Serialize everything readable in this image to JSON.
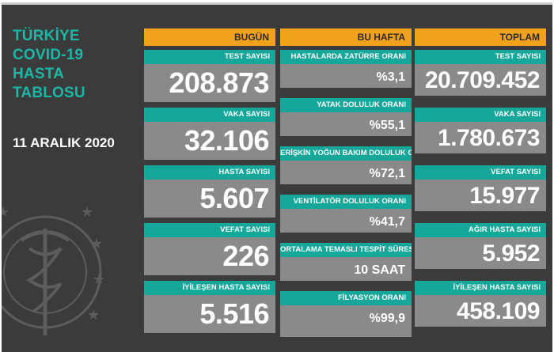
{
  "title_lines": [
    "TÜRKİYE",
    "COVID-19",
    "HASTA",
    "TABLOSU"
  ],
  "date": "11 ARALIK 2020",
  "columns": {
    "bugun": {
      "header": "BUGÜN",
      "items": [
        {
          "label": "TEST SAYISI",
          "value": "208.873"
        },
        {
          "label": "VAKA SAYISI",
          "value": "32.106"
        },
        {
          "label": "HASTA SAYISI",
          "value": "5.607"
        },
        {
          "label": "VEFAT SAYISI",
          "value": "226"
        },
        {
          "label": "İYİLEŞEN HASTA SAYISI",
          "value": "5.516"
        }
      ]
    },
    "bu_hafta": {
      "header": "BU HAFTA",
      "items": [
        {
          "label": "HASTALARDA ZATÜRRE ORANI",
          "value": "%3,1"
        },
        {
          "label": "YATAK DOLULUK ORANI",
          "value": "%55,1"
        },
        {
          "label": "ERİŞKİN YOĞUN BAKIM DOLULUK ORANI",
          "value": "%72,1"
        },
        {
          "label": "VENTİLATÖR DOLULUK ORANI",
          "value": "%41,7"
        },
        {
          "label": "ORTALAMA TEMASLI TESPİT SÜRESİ",
          "value": "10 SAAT"
        },
        {
          "label": "FİLYASYON ORANI",
          "value": "%99,9"
        }
      ]
    },
    "toplam": {
      "header": "TOPLAM",
      "items": [
        {
          "label": "TEST SAYISI",
          "value": "20.709.452"
        },
        {
          "label": "VAKA SAYISI",
          "value": "1.780.673"
        },
        {
          "label": "VEFAT SAYISI",
          "value": "15.977"
        },
        {
          "label": "AĞIR HASTA SAYISI",
          "value": "5.952"
        },
        {
          "label": "İYİLEŞEN HASTA SAYISI",
          "value": "458.109"
        }
      ]
    }
  },
  "colors": {
    "background": "#3b3b3b",
    "header": "#f2a11b",
    "label": "#14a79a",
    "value": "#8a8a8a",
    "title": "#19b8a6"
  },
  "icons": [
    "ministry-emblem-icon"
  ]
}
